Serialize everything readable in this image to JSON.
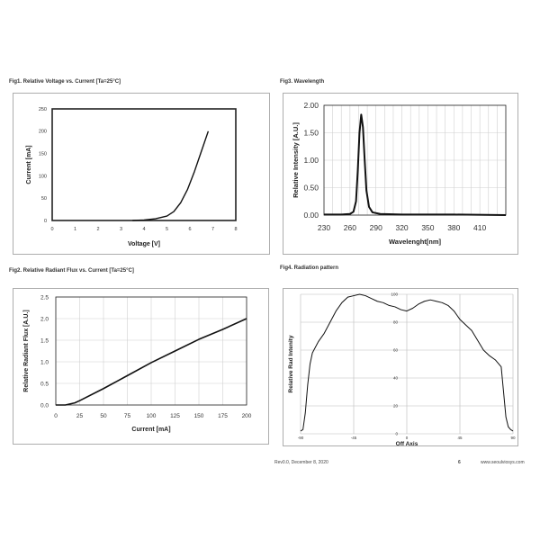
{
  "figures": {
    "fig1_title": "Fig1. Relative Voltage vs. Current [Ta=25°C]",
    "fig3_title": "Fig3. Wavelength",
    "fig2_title": "Fig2. Relative Radiant Flux vs. Current [Ta=25°C]",
    "fig4_title": "Fig4. Radiation pattern"
  },
  "footer": {
    "revision": "Rev0.0, December 8, 2020",
    "page": "6",
    "website": "www.seoulviosys.com"
  },
  "chart_data": [
    {
      "id": "fig1",
      "type": "line",
      "xlabel": "Voltage [V]",
      "ylabel": "Current [mA]",
      "xlim": [
        0,
        8
      ],
      "ylim": [
        0,
        250
      ],
      "xticks": [
        "0",
        "1",
        "2",
        "3",
        "4",
        "5",
        "6",
        "7",
        "8"
      ],
      "yticks": [
        "0",
        "50",
        "100",
        "150",
        "200",
        "250"
      ],
      "grid": false,
      "series": [
        {
          "x": [
            3.5,
            4.0,
            4.5,
            5.0,
            5.3,
            5.6,
            5.9,
            6.2,
            6.5,
            6.8
          ],
          "y": [
            0,
            1,
            4,
            10,
            20,
            40,
            70,
            110,
            155,
            200
          ]
        }
      ]
    },
    {
      "id": "fig3",
      "type": "line",
      "xlabel": "Wavelenght[nm]",
      "ylabel": "Relative Intensity [A.U.]",
      "xlim": [
        230,
        440
      ],
      "ylim": [
        0,
        2
      ],
      "xticks": [
        "230",
        "260",
        "290",
        "320",
        "350",
        "380",
        "410"
      ],
      "yticks": [
        "0.00",
        "0.50",
        "1.00",
        "1.50",
        "2.00"
      ],
      "grid": true,
      "series": [
        {
          "x": [
            230,
            250,
            260,
            264,
            267,
            269,
            271,
            273,
            275,
            277,
            279,
            282,
            286,
            295,
            320,
            380,
            440
          ],
          "y": [
            0.01,
            0.01,
            0.02,
            0.06,
            0.25,
            0.8,
            1.5,
            1.83,
            1.6,
            1.0,
            0.45,
            0.15,
            0.05,
            0.02,
            0.01,
            0.01,
            0.0
          ]
        }
      ]
    },
    {
      "id": "fig2",
      "type": "line",
      "xlabel": "Current [mA]",
      "ylabel": "Relative Radiant Flux [A.U.]",
      "xlim": [
        0,
        200
      ],
      "ylim": [
        0,
        2.5
      ],
      "xticks": [
        "0",
        "25",
        "50",
        "75",
        "100",
        "125",
        "150",
        "175",
        "200"
      ],
      "yticks": [
        "0.0",
        "0.5",
        "1.0",
        "1.5",
        "2.0",
        "2.5"
      ],
      "grid": true,
      "series": [
        {
          "x": [
            0,
            10,
            20,
            25,
            50,
            75,
            100,
            125,
            150,
            175,
            200
          ],
          "y": [
            0.0,
            0.0,
            0.05,
            0.1,
            0.38,
            0.68,
            0.98,
            1.25,
            1.52,
            1.75,
            2.0
          ]
        }
      ]
    },
    {
      "id": "fig4",
      "type": "line",
      "xlabel": "Off Axis",
      "ylabel": "Relative Rad Intenity",
      "xlim": [
        -90,
        90
      ],
      "ylim": [
        0,
        100
      ],
      "xticks": [
        "-90",
        "-45",
        "0",
        "45",
        "90"
      ],
      "yticks": [
        "0",
        "20",
        "40",
        "60",
        "80",
        "100"
      ],
      "grid": true,
      "series": [
        {
          "x": [
            -90,
            -88,
            -86,
            -84,
            -82,
            -80,
            -75,
            -70,
            -65,
            -60,
            -55,
            -50,
            -45,
            -40,
            -35,
            -30,
            -25,
            -20,
            -15,
            -10,
            -5,
            0,
            5,
            10,
            15,
            20,
            25,
            30,
            35,
            40,
            45,
            50,
            55,
            60,
            65,
            70,
            75,
            80,
            82,
            84,
            86,
            88,
            90
          ],
          "y": [
            2,
            3,
            15,
            35,
            50,
            58,
            66,
            72,
            80,
            88,
            94,
            98,
            99,
            100,
            99,
            97,
            95,
            94,
            92,
            91,
            89,
            88,
            90,
            93,
            95,
            96,
            95,
            94,
            92,
            88,
            82,
            78,
            74,
            67,
            60,
            56,
            53,
            48,
            30,
            12,
            5,
            3,
            2
          ]
        }
      ]
    }
  ]
}
